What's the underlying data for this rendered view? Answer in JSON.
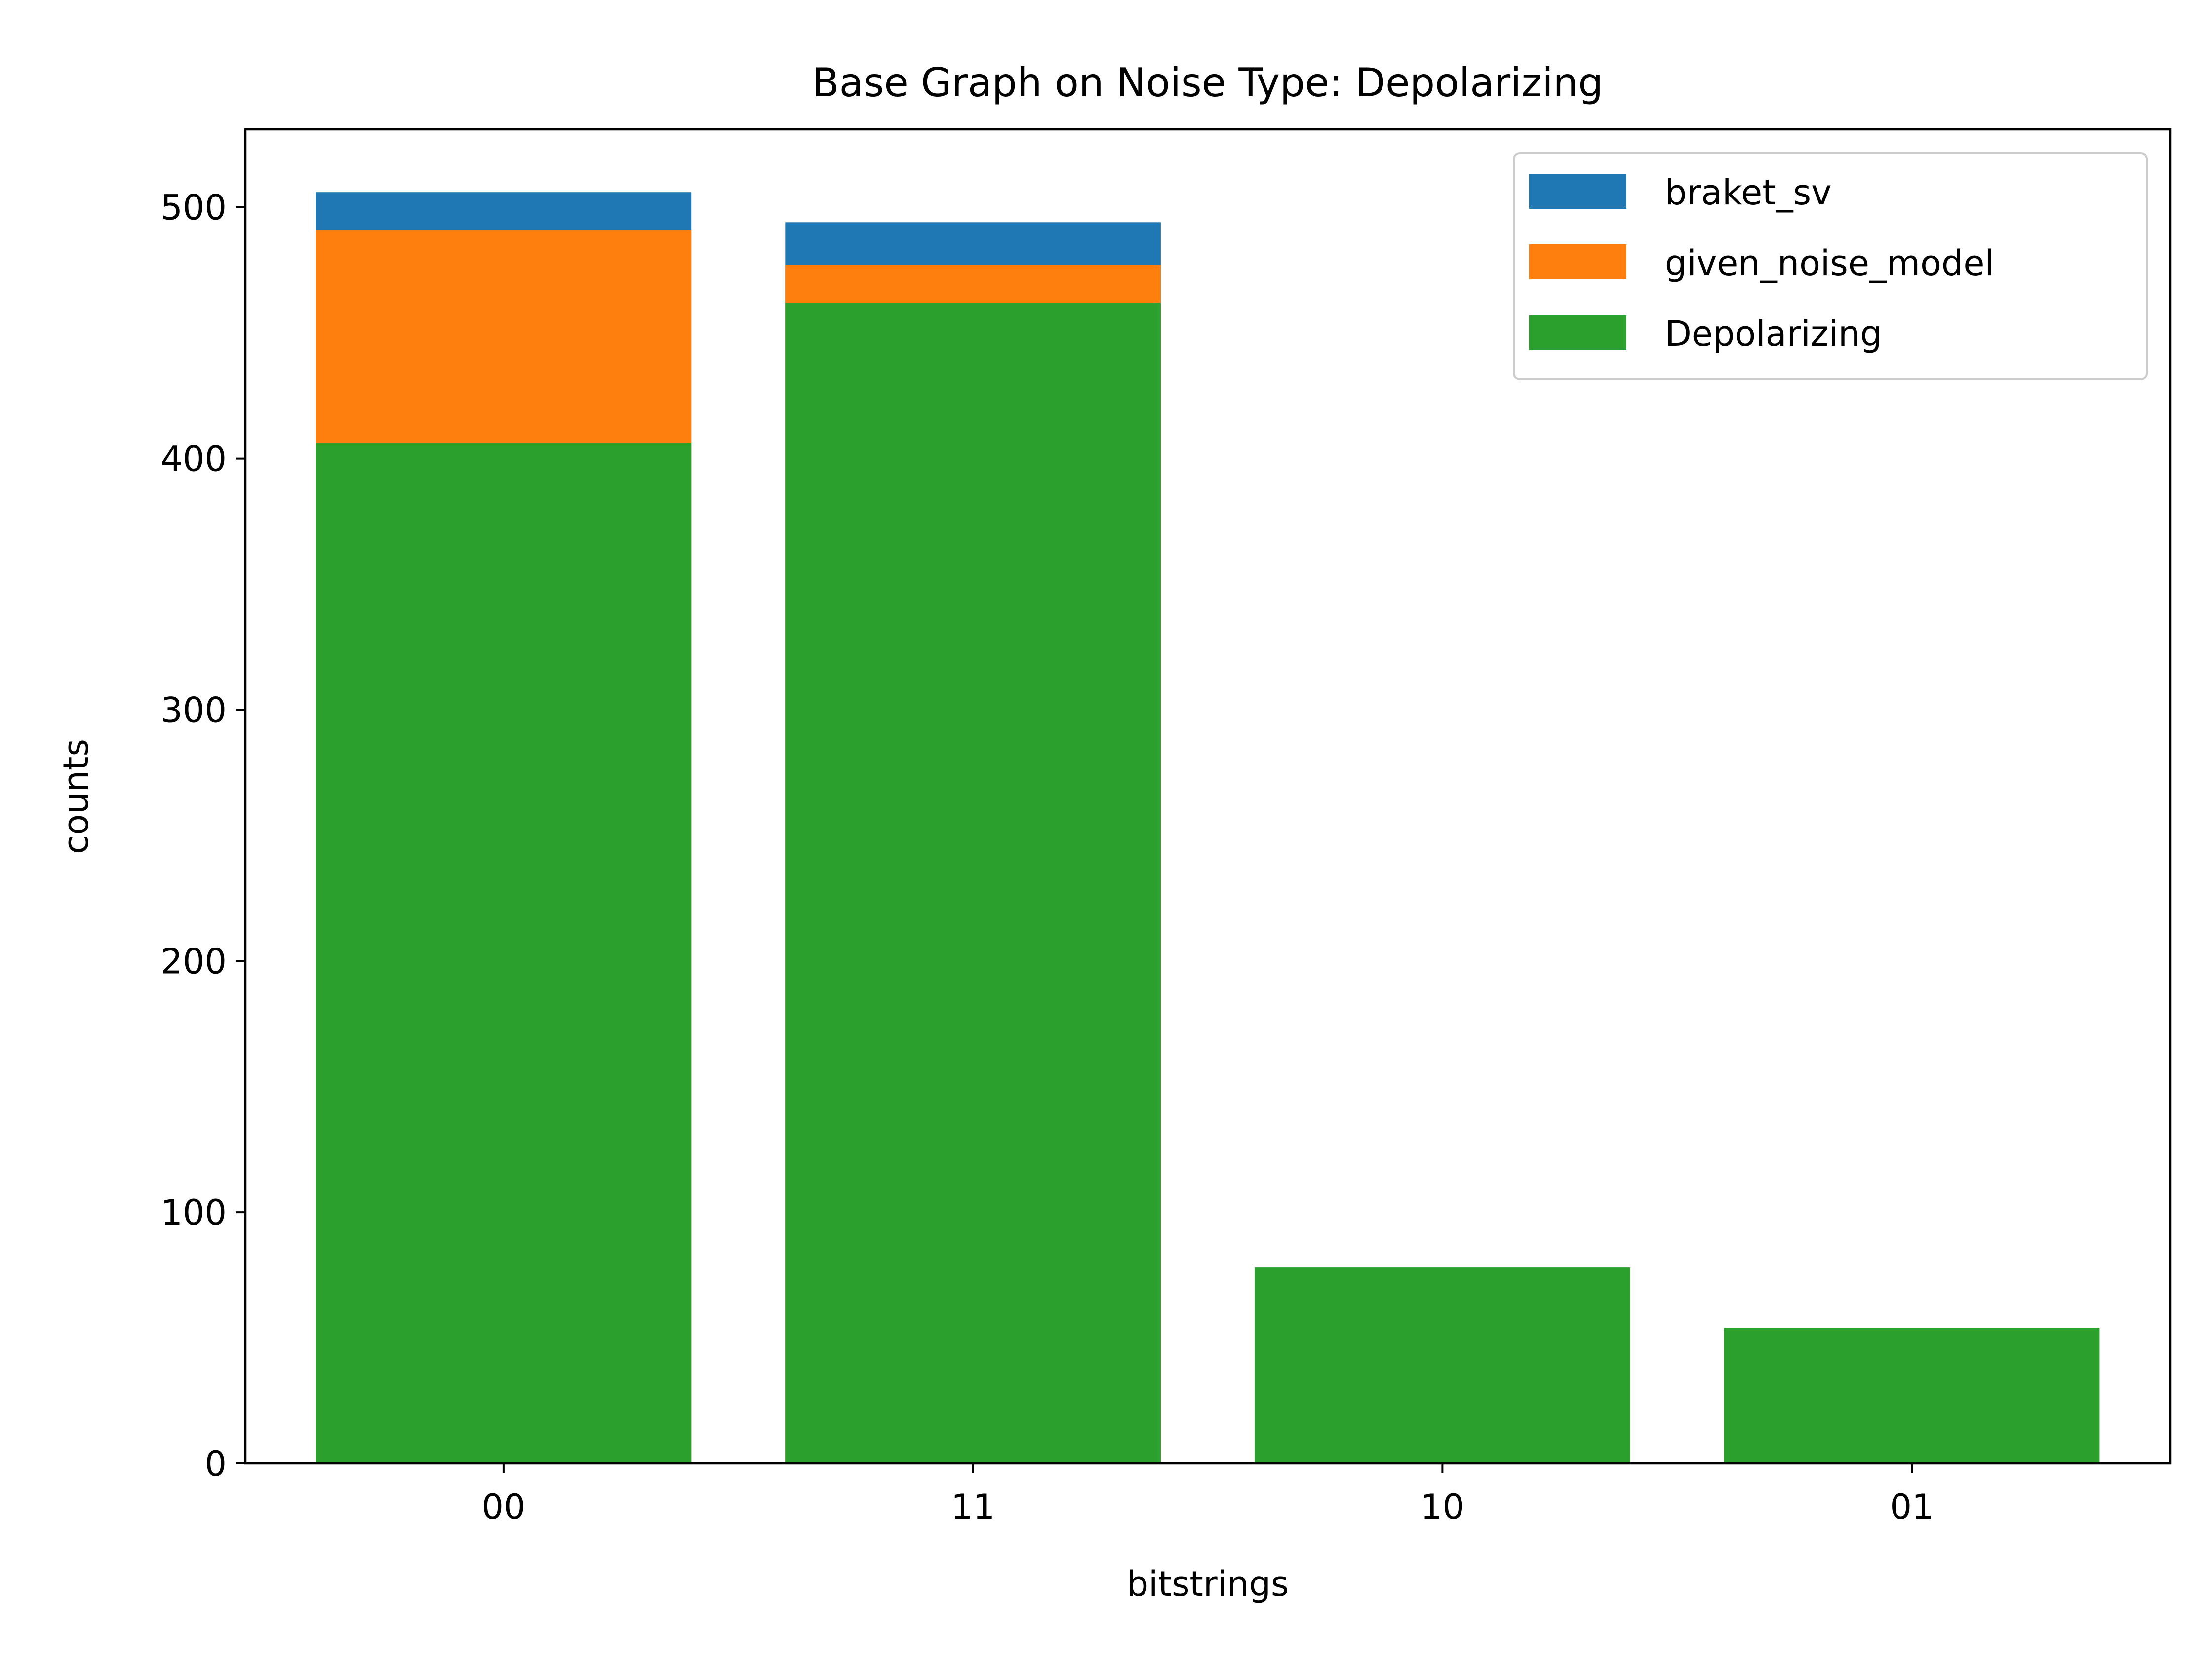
{
  "chart_data": {
    "type": "bar",
    "title": "Base Graph on Noise Type: Depolarizing",
    "xlabel": "bitstrings",
    "ylabel": "counts",
    "categories": [
      "00",
      "11",
      "10",
      "01"
    ],
    "series": [
      {
        "name": "braket_sv",
        "color": "#1f77b4",
        "values": [
          506,
          494,
          0,
          0
        ]
      },
      {
        "name": "given_noise_model",
        "color": "#ff7f0e",
        "values": [
          491,
          477,
          0,
          0
        ]
      },
      {
        "name": "Depolarizing",
        "color": "#2ca02c",
        "values": [
          406,
          462,
          78,
          54
        ]
      }
    ],
    "ylim": [
      0,
      531
    ],
    "yticks": [
      0,
      100,
      200,
      300,
      400,
      500
    ],
    "bar_mode": "overlay",
    "grid": false,
    "legend_position": "upper right"
  }
}
